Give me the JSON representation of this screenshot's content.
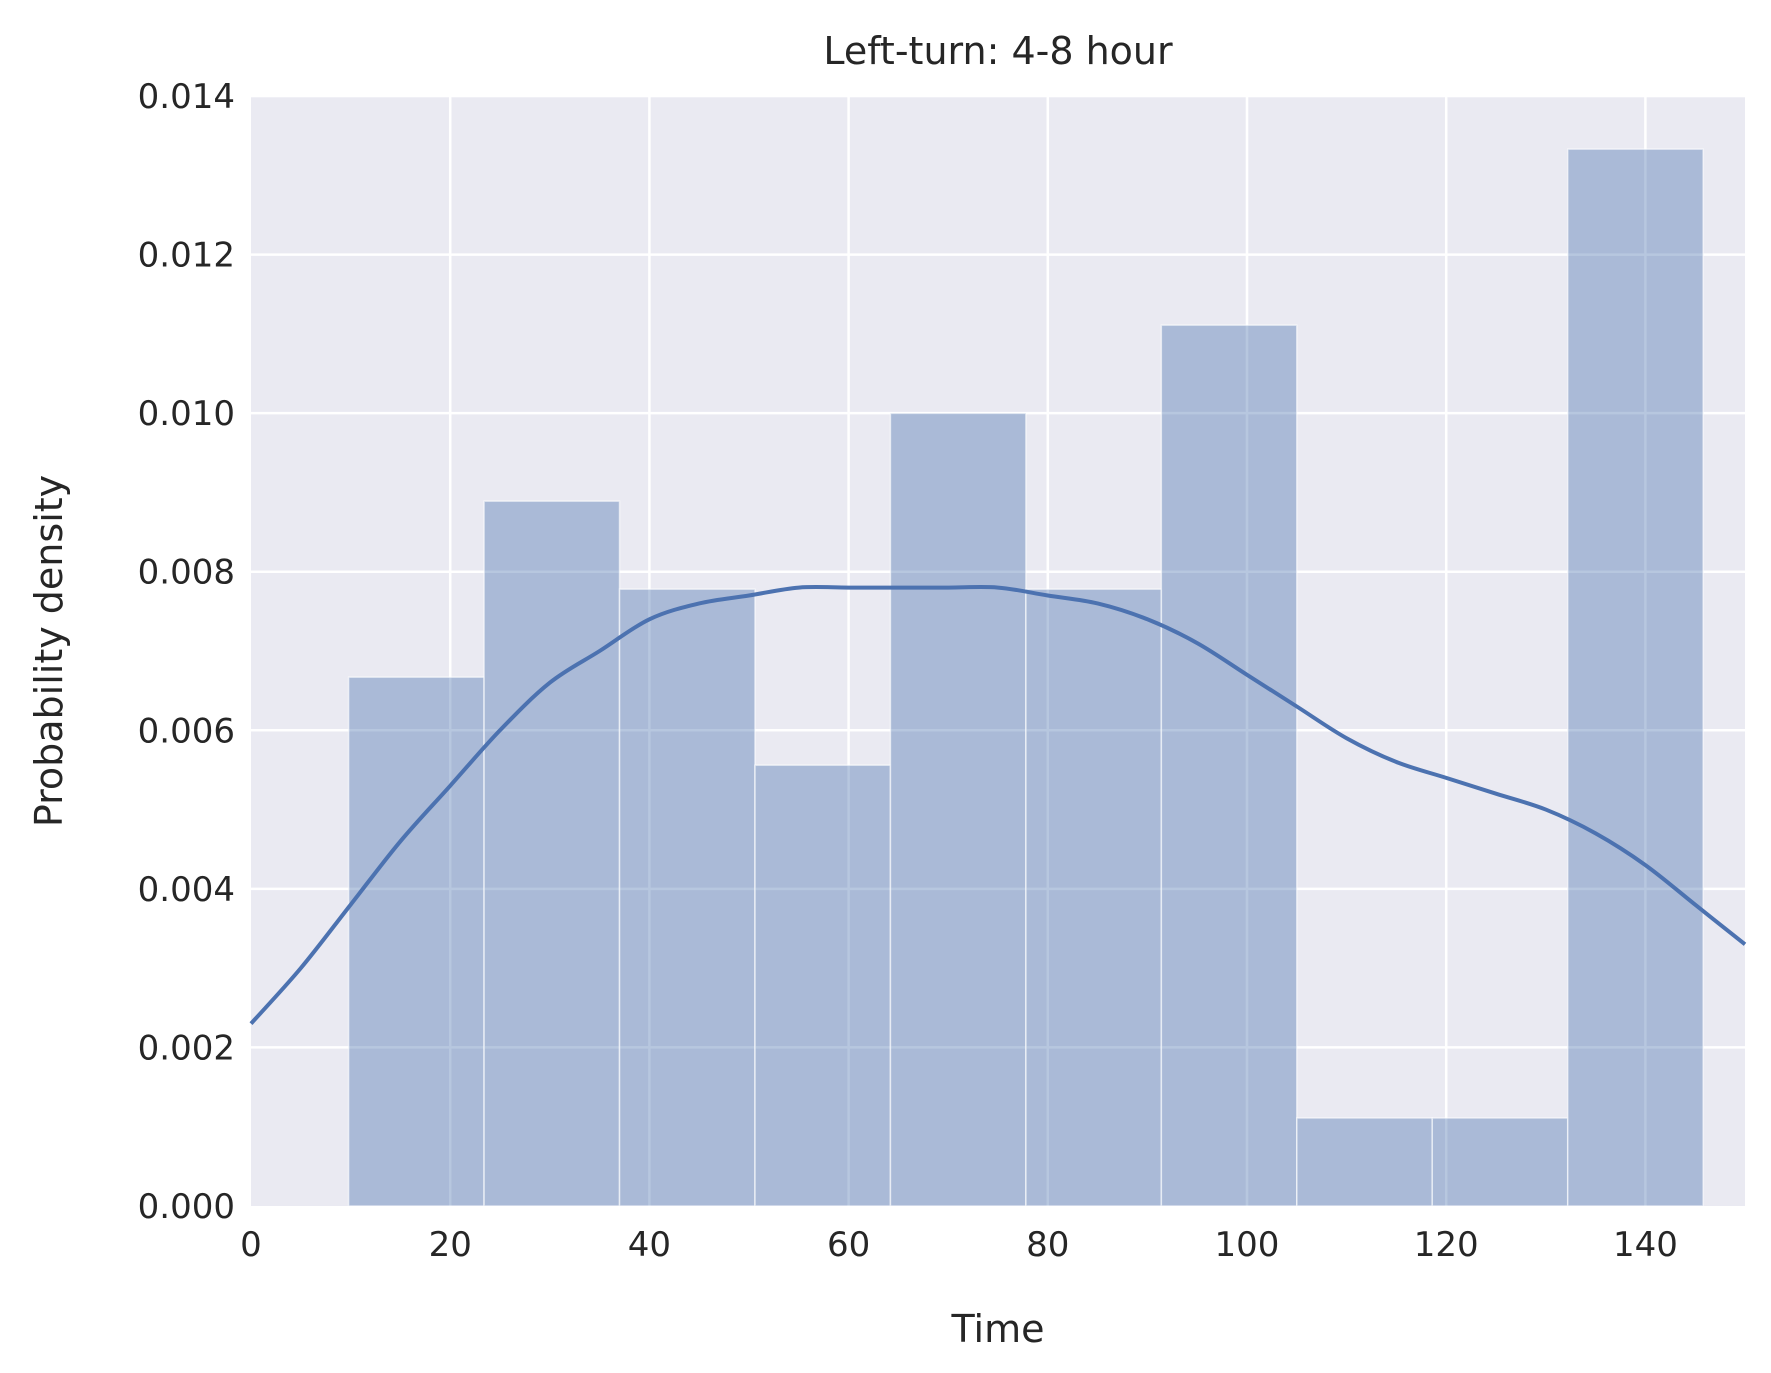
{
  "chart_data": {
    "type": "bar",
    "title": "Left-turn: 4-8 hour",
    "xlabel": "Time",
    "ylabel": "Probability density",
    "xlim": [
      0,
      150
    ],
    "ylim": [
      0,
      0.014
    ],
    "grid": true,
    "xticks": [
      0,
      20,
      40,
      60,
      80,
      100,
      120,
      140
    ],
    "yticks": [
      "0.000",
      "0.002",
      "0.004",
      "0.006",
      "0.008",
      "0.010",
      "0.012",
      "0.014"
    ],
    "colors": {
      "bar": "#4C72B0",
      "kde": "#4C72B0",
      "background": "#EAEAF2",
      "grid": "#FFFFFF"
    },
    "histogram": {
      "bin_edges": [
        9.8,
        23.4,
        37.0,
        50.6,
        64.2,
        77.8,
        91.4,
        105.0,
        118.6,
        132.2,
        145.8
      ],
      "densities": [
        0.00667,
        0.00889,
        0.00778,
        0.00556,
        0.01,
        0.00778,
        0.01111,
        0.00111,
        0.00111,
        0.01333
      ]
    },
    "kde": {
      "x": [
        0,
        5,
        10,
        15,
        20,
        25,
        30,
        35,
        40,
        45,
        50,
        55,
        60,
        65,
        70,
        75,
        80,
        85,
        90,
        95,
        100,
        105,
        110,
        115,
        120,
        125,
        130,
        135,
        140,
        145,
        150
      ],
      "y": [
        0.0023,
        0.003,
        0.0038,
        0.0046,
        0.0053,
        0.006,
        0.0066,
        0.007,
        0.0074,
        0.0076,
        0.0077,
        0.0078,
        0.0078,
        0.0078,
        0.0078,
        0.0078,
        0.0077,
        0.0076,
        0.0074,
        0.0071,
        0.0067,
        0.0063,
        0.0059,
        0.0056,
        0.0054,
        0.0052,
        0.005,
        0.0047,
        0.0043,
        0.0038,
        0.0033
      ]
    }
  }
}
